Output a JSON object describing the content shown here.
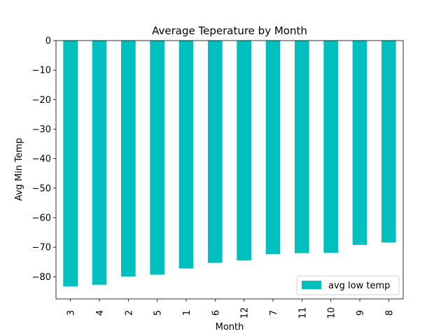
{
  "chart_data": {
    "type": "bar",
    "title": "Average Teperature by Month",
    "xlabel": "Month",
    "ylabel": "Avg Min Temp",
    "categories": [
      "3",
      "4",
      "2",
      "5",
      "1",
      "6",
      "12",
      "7",
      "11",
      "10",
      "9",
      "8"
    ],
    "series": [
      {
        "name": "avg low temp",
        "color": "#00BFBF",
        "values": [
          -83.3,
          -82.7,
          -79.9,
          -79.3,
          -77.2,
          -75.3,
          -74.5,
          -72.3,
          -72.0,
          -71.9,
          -69.2,
          -68.4
        ]
      }
    ],
    "ylim": [
      -87.5,
      0
    ],
    "yticks": [
      0,
      -10,
      -20,
      -30,
      -40,
      -50,
      -60,
      -70,
      -80
    ],
    "ytick_labels": [
      "0",
      "−10",
      "−20",
      "−30",
      "−40",
      "−50",
      "−60",
      "−70",
      "−80"
    ],
    "legend_position": "lower-right",
    "grid": false
  }
}
